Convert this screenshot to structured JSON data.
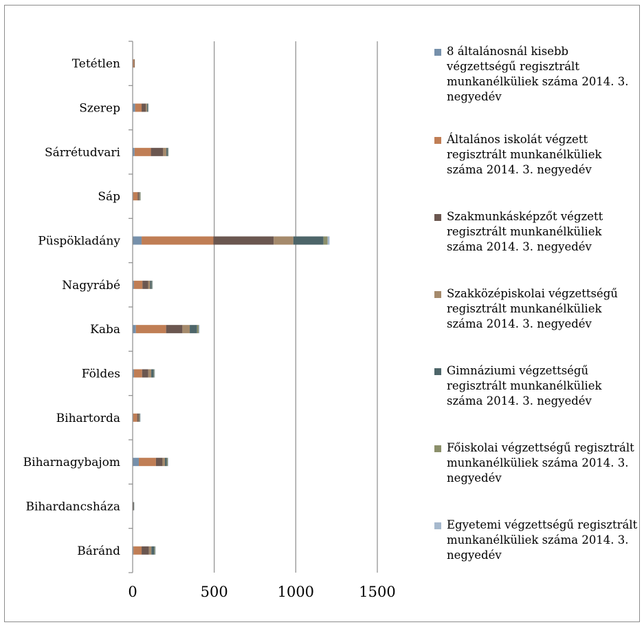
{
  "chart_data": {
    "type": "bar",
    "orientation": "horizontal",
    "stacked": true,
    "categories": [
      "Báránd",
      "Bihardancsháza",
      "Biharnagybajom",
      "Bihartorda",
      "Földes",
      "Kaba",
      "Nagyrábé",
      "Püspökladány",
      "Sáp",
      "Sárrétudvari",
      "Szerep",
      "Tetétlen"
    ],
    "series": [
      {
        "name": "8 általánosnál kisebb végzettségű regisztrált munkanélküliek száma 2014. 3. negyedév",
        "color": "#7690ab",
        "values": [
          5,
          0,
          38,
          3,
          8,
          20,
          8,
          55,
          3,
          12,
          15,
          0
        ]
      },
      {
        "name": "Általános iskolát végzett regisztrált munkanélküliek száma 2014. 3. negyedév",
        "color": "#c07e55",
        "values": [
          50,
          2,
          105,
          25,
          50,
          185,
          52,
          440,
          28,
          100,
          40,
          8
        ]
      },
      {
        "name": "Szakmunkásképzőt végzett regisztrált munkanélküliek száma 2014. 3. negyedév",
        "color": "#6b5750",
        "values": [
          45,
          3,
          40,
          8,
          38,
          100,
          35,
          370,
          8,
          75,
          25,
          2
        ]
      },
      {
        "name": "Szakközépiskolai végzettségű regisztrált munkanélküliek száma 2014. 3. negyedév",
        "color": "#a58a6c",
        "values": [
          15,
          1,
          15,
          4,
          18,
          45,
          12,
          120,
          3,
          20,
          8,
          1
        ]
      },
      {
        "name": "Gimnáziumi végzettségű regisztrált munkanélküliek száma 2014. 3. negyedév",
        "color": "#4d6569",
        "values": [
          18,
          1,
          12,
          3,
          15,
          45,
          10,
          185,
          3,
          8,
          5,
          0
        ]
      },
      {
        "name": "Főiskolai végzettségű regisztrált munkanélküliek száma 2014. 3. negyedév",
        "color": "#8b8f6a",
        "values": [
          5,
          0,
          5,
          2,
          4,
          10,
          3,
          25,
          1,
          3,
          2,
          0
        ]
      },
      {
        "name": "Egyetemi végzettségű regisztrált munkanélküliek száma 2014. 3. negyedév",
        "color": "#a6b9cd",
        "values": [
          2,
          0,
          3,
          1,
          2,
          5,
          2,
          12,
          0,
          2,
          1,
          0
        ]
      }
    ],
    "xlim": [
      0,
      1500
    ],
    "xticks": [
      0,
      500,
      1000,
      1500
    ],
    "grid": "vertical",
    "legend": "right"
  }
}
